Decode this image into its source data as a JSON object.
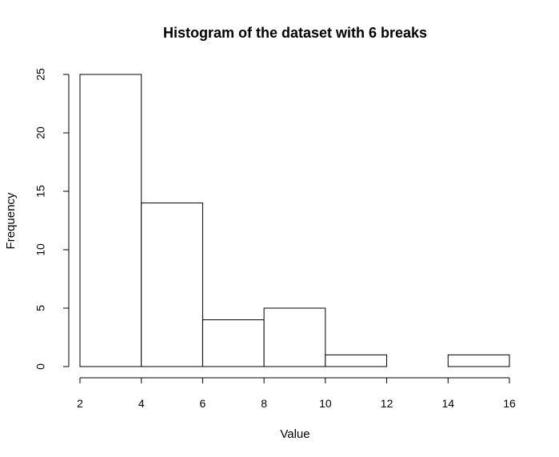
{
  "chart_data": {
    "type": "bar",
    "title": "Histogram of the dataset with 6 breaks",
    "xlabel": "Value",
    "ylabel": "Frequency",
    "bins": [
      {
        "start": 2,
        "end": 4,
        "count": 25
      },
      {
        "start": 4,
        "end": 6,
        "count": 14
      },
      {
        "start": 6,
        "end": 8,
        "count": 4
      },
      {
        "start": 8,
        "end": 10,
        "count": 5
      },
      {
        "start": 10,
        "end": 12,
        "count": 1
      },
      {
        "start": 12,
        "end": 14,
        "count": 0
      },
      {
        "start": 14,
        "end": 16,
        "count": 1
      }
    ],
    "xlim": [
      2,
      16
    ],
    "ylim": [
      0,
      25
    ],
    "x_ticks": [
      "2",
      "4",
      "6",
      "8",
      "10",
      "12",
      "14",
      "16"
    ],
    "y_ticks": [
      "0",
      "5",
      "10",
      "15",
      "20",
      "25"
    ],
    "grid": false,
    "bar_fill": "#ffffff",
    "bar_stroke": "#000000"
  }
}
